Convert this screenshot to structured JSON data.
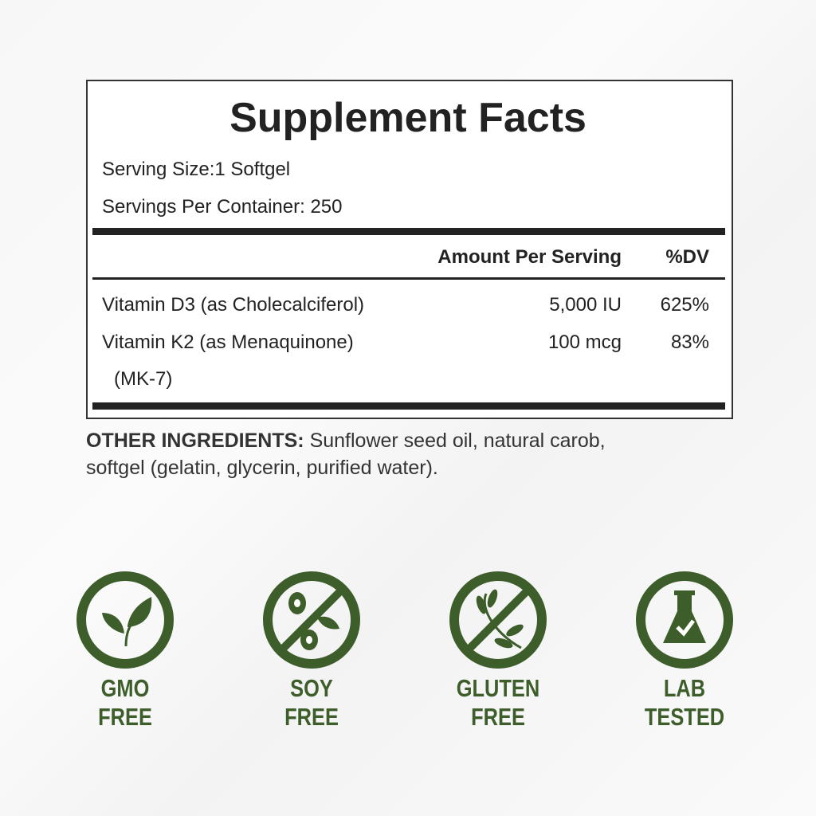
{
  "facts": {
    "title": "Supplement Facts",
    "serving_size": "Serving Size:1 Softgel",
    "servings_per_container": "Servings Per Container: 250",
    "header_amount": "Amount Per Serving",
    "header_dv": "%DV",
    "rows": [
      {
        "name": "Vitamin D3 (as Cholecalciferol)",
        "amount": "5,000 IU",
        "dv": "625%"
      },
      {
        "name": "Vitamin K2 (as Menaquinone)",
        "name_cont": "(MK-7)",
        "amount": "100 mcg",
        "dv": "83%"
      }
    ]
  },
  "other_ingredients": {
    "label": "OTHER INGREDIENTS:",
    "line1": " Sunflower seed oil, natural carob,",
    "line2": "softgel (gelatin, glycerin, purified water)."
  },
  "badges": [
    {
      "icon": "leaf-icon",
      "line1": "GMO",
      "line2": "FREE"
    },
    {
      "icon": "soybean-icon",
      "line1": "SOY",
      "line2": "FREE"
    },
    {
      "icon": "wheat-icon",
      "line1": "GLUTEN",
      "line2": "FREE"
    },
    {
      "icon": "flask-check-icon",
      "line1": "LAB",
      "line2": "TESTED"
    }
  ],
  "colors": {
    "badge_green": "#3d5e2a",
    "text": "#222222"
  }
}
